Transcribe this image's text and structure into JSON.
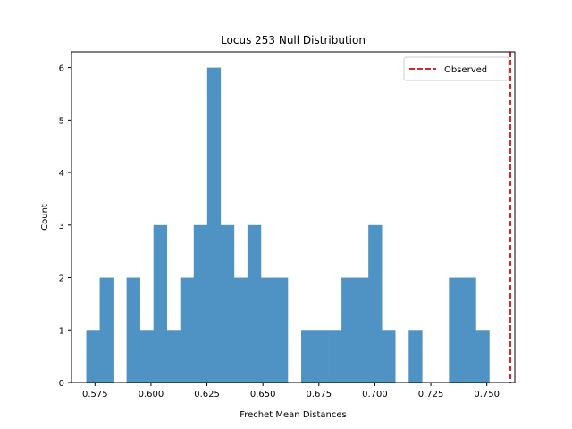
{
  "chart_data": {
    "type": "bar",
    "title": "Locus 253 Null Distribution",
    "xlabel": "Frechet Mean Distances",
    "ylabel": "Count",
    "xlim": [
      0.5645,
      0.7625
    ],
    "ylim": [
      0,
      6.3
    ],
    "xticks": [
      0.575,
      0.6,
      0.625,
      0.65,
      0.675,
      0.7,
      0.725,
      0.75
    ],
    "xtick_labels": [
      "0.575",
      "0.600",
      "0.625",
      "0.650",
      "0.675",
      "0.700",
      "0.725",
      "0.750"
    ],
    "yticks": [
      0,
      1,
      2,
      3,
      4,
      5,
      6
    ],
    "ytick_labels": [
      "0",
      "1",
      "2",
      "3",
      "4",
      "5",
      "6"
    ],
    "bin_start": 0.5711,
    "bin_width": 0.006,
    "counts": [
      1,
      2,
      0,
      2,
      1,
      3,
      1,
      2,
      3,
      6,
      3,
      2,
      3,
      2,
      2,
      0,
      1,
      1,
      1,
      2,
      2,
      3,
      1,
      0,
      1,
      0,
      0,
      2,
      2,
      1
    ],
    "bar_color": "#4e93c3",
    "observed": {
      "label": "Observed",
      "x": 0.7605,
      "color": "#d62728",
      "style": "dashed"
    },
    "legend": {
      "position": "upper right",
      "entries": [
        "Observed"
      ]
    },
    "grid": false
  }
}
